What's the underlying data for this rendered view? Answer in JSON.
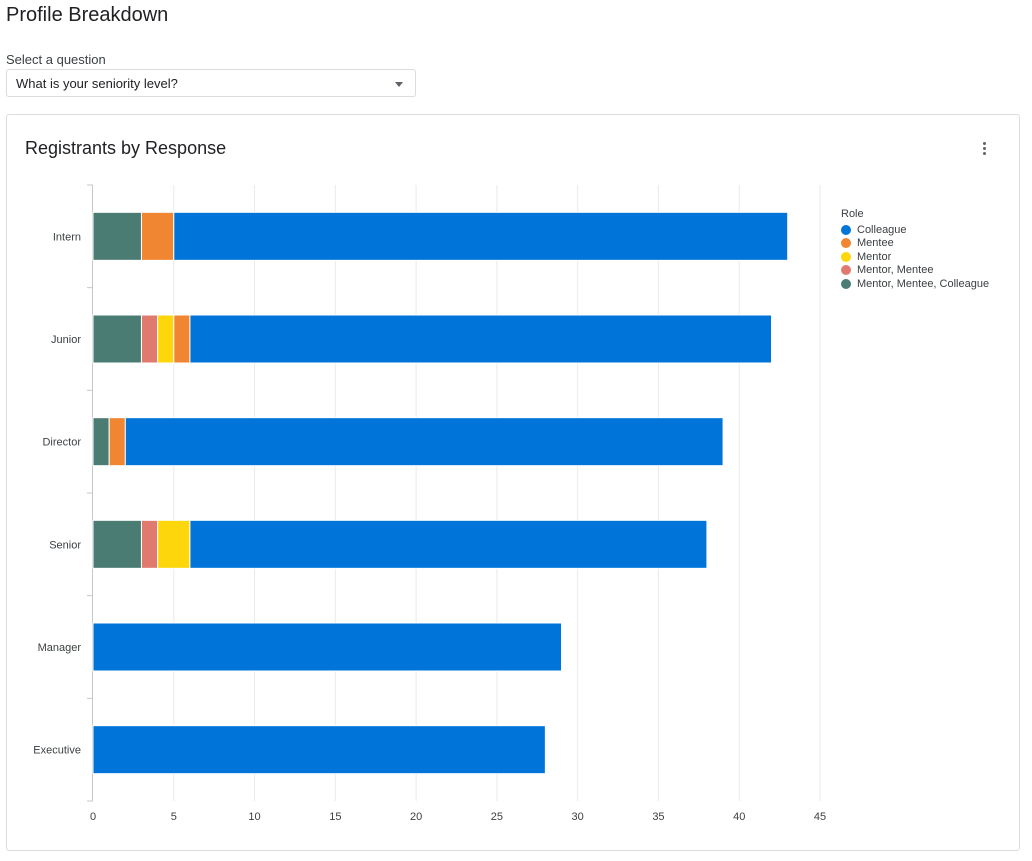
{
  "page": {
    "title": "Profile Breakdown"
  },
  "question_select": {
    "label": "Select a question",
    "value": "What is your seniority level?",
    "caret_icon": "caret-down-icon"
  },
  "card": {
    "title": "Registrants by Response",
    "menu_icon": "more-vert-icon"
  },
  "chart_data": {
    "type": "bar",
    "orientation": "horizontal",
    "stacked": true,
    "title": "Registrants by Response",
    "categories": [
      "Intern",
      "Junior",
      "Director",
      "Senior",
      "Manager",
      "Executive"
    ],
    "series": [
      {
        "name": "Mentor, Mentee, Colleague",
        "color": "#4a7c74",
        "values": [
          3,
          3,
          1,
          3,
          0,
          0
        ]
      },
      {
        "name": "Mentor, Mentee",
        "color": "#e07a6e",
        "values": [
          0,
          1,
          0,
          1,
          0,
          0
        ]
      },
      {
        "name": "Mentor",
        "color": "#fdd60c",
        "values": [
          0,
          1,
          0,
          2,
          0,
          0
        ]
      },
      {
        "name": "Mentee",
        "color": "#f08631",
        "values": [
          2,
          1,
          1,
          0,
          0,
          0
        ]
      },
      {
        "name": "Colleague",
        "color": "#0074d9",
        "values": [
          38,
          36,
          37,
          32,
          29,
          28
        ]
      }
    ],
    "xlim": [
      0,
      45
    ],
    "xticks": [
      0,
      5,
      10,
      15,
      20,
      25,
      30,
      35,
      40,
      45
    ],
    "grid": "vertical",
    "legend": {
      "title": "Role",
      "position": "top-right",
      "items": [
        {
          "name": "Colleague",
          "color": "#0074d9"
        },
        {
          "name": "Mentee",
          "color": "#f08631"
        },
        {
          "name": "Mentor",
          "color": "#fdd60c"
        },
        {
          "name": "Mentor, Mentee",
          "color": "#e07a6e"
        },
        {
          "name": "Mentor, Mentee, Colleague",
          "color": "#4a7c74"
        }
      ]
    }
  }
}
